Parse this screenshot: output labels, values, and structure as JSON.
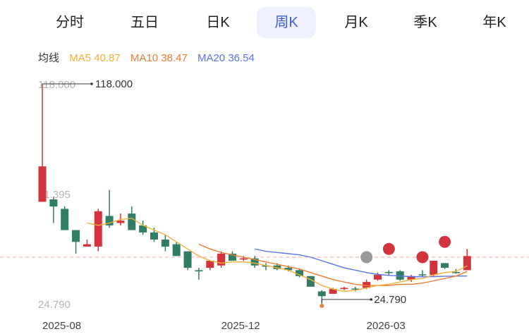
{
  "tabs": [
    {
      "label": "分时",
      "active": false
    },
    {
      "label": "五日",
      "active": false
    },
    {
      "label": "日K",
      "active": false
    },
    {
      "label": "周K",
      "active": true
    },
    {
      "label": "月K",
      "active": false
    },
    {
      "label": "季K",
      "active": false
    },
    {
      "label": "年K",
      "active": false
    }
  ],
  "legend": {
    "title": "均线",
    "ma5": "MA5 40.87",
    "ma10": "MA10 38.47",
    "ma20": "MA20 36.54"
  },
  "colors": {
    "up": "#d3333b",
    "down": "#2f7d64",
    "ma5": "#f2b13b",
    "ma10": "#ef7d34",
    "ma20": "#5b74e8",
    "ref_line": "#f0a89a",
    "marker_gray": "#999999",
    "marker_red": "#d3333b",
    "marker_orange": "#ef7d34"
  },
  "chart_data": {
    "type": "candlestick",
    "y_ticks": [
      "118.000",
      "71.395",
      "24.790"
    ],
    "y_tick_values": [
      118,
      71.395,
      24.79
    ],
    "x_ticks": [
      {
        "label": "2025-08",
        "index": 0
      },
      {
        "label": "2025-12",
        "index": 16
      },
      {
        "label": "2026-03",
        "index": 29
      }
    ],
    "max_annotation": {
      "label": "118.000",
      "value": 118,
      "index": 0
    },
    "min_annotation": {
      "label": "24.790",
      "value": 24.79,
      "index": 25
    },
    "reference_price": 44.5,
    "candles": [
      {
        "o": 68,
        "c": 83,
        "h": 118,
        "l": 68
      },
      {
        "o": 69,
        "c": 66,
        "h": 70,
        "l": 59
      },
      {
        "o": 65,
        "c": 56,
        "h": 66,
        "l": 56
      },
      {
        "o": 56,
        "c": 51,
        "h": 56,
        "l": 46
      },
      {
        "o": 49,
        "c": 50,
        "h": 52,
        "l": 49
      },
      {
        "o": 49,
        "c": 64,
        "h": 65,
        "l": 47
      },
      {
        "o": 62,
        "c": 58,
        "h": 73,
        "l": 57
      },
      {
        "o": 59,
        "c": 60,
        "h": 63,
        "l": 58
      },
      {
        "o": 63,
        "c": 56,
        "h": 66,
        "l": 56
      },
      {
        "o": 58,
        "c": 55,
        "h": 60,
        "l": 54
      },
      {
        "o": 55,
        "c": 52,
        "h": 57,
        "l": 51
      },
      {
        "o": 52,
        "c": 49,
        "h": 54,
        "l": 47
      },
      {
        "o": 50,
        "c": 45,
        "h": 51,
        "l": 45
      },
      {
        "o": 47,
        "c": 40,
        "h": 47,
        "l": 39
      },
      {
        "o": 39,
        "c": 38.5,
        "h": 40,
        "l": 35
      },
      {
        "o": 40,
        "c": 43,
        "h": 43,
        "l": 39
      },
      {
        "o": 41,
        "c": 46,
        "h": 47,
        "l": 40
      },
      {
        "o": 46,
        "c": 43,
        "h": 47,
        "l": 43
      },
      {
        "o": 43.5,
        "c": 44,
        "h": 45,
        "l": 43
      },
      {
        "o": 44,
        "c": 41,
        "h": 45,
        "l": 40
      },
      {
        "o": 41,
        "c": 40.5,
        "h": 42,
        "l": 39
      },
      {
        "o": 41,
        "c": 39.5,
        "h": 42,
        "l": 39
      },
      {
        "o": 40,
        "c": 39,
        "h": 41,
        "l": 38.5
      },
      {
        "o": 39,
        "c": 36.5,
        "h": 39.5,
        "l": 36
      },
      {
        "o": 36.5,
        "c": 32,
        "h": 36.5,
        "l": 32
      },
      {
        "o": 30,
        "c": 28,
        "h": 30.5,
        "l": 24.79
      },
      {
        "o": 29,
        "c": 31,
        "h": 31.5,
        "l": 29
      },
      {
        "o": 31,
        "c": 31.5,
        "h": 32,
        "l": 30.5
      },
      {
        "o": 31,
        "c": 31,
        "h": 32,
        "l": 30
      },
      {
        "o": 31.5,
        "c": 34,
        "h": 35,
        "l": 31
      },
      {
        "o": 35,
        "c": 37,
        "h": 38,
        "l": 34.5
      },
      {
        "o": 38,
        "c": 38,
        "h": 39,
        "l": 37
      },
      {
        "o": 38.5,
        "c": 35,
        "h": 39,
        "l": 34.5
      },
      {
        "o": 35,
        "c": 36.5,
        "h": 37,
        "l": 34
      },
      {
        "o": 37,
        "c": 37,
        "h": 39,
        "l": 36
      },
      {
        "o": 37,
        "c": 43,
        "h": 43,
        "l": 36.5
      },
      {
        "o": 42,
        "c": 40,
        "h": 42,
        "l": 39.5
      },
      {
        "o": 38,
        "c": 38,
        "h": 39.5,
        "l": 37.5
      },
      {
        "o": 39,
        "c": 45,
        "h": 48,
        "l": 39
      }
    ],
    "ma5_points": [
      [
        4,
        59
      ],
      [
        5,
        58
      ],
      [
        6,
        59
      ],
      [
        7,
        60.5
      ],
      [
        8,
        61
      ],
      [
        9,
        58
      ],
      [
        10,
        56
      ],
      [
        11,
        54
      ],
      [
        12,
        51
      ],
      [
        13,
        48
      ],
      [
        14,
        45
      ],
      [
        15,
        43
      ],
      [
        16,
        42
      ],
      [
        17,
        42.5
      ],
      [
        18,
        42.5
      ],
      [
        19,
        42
      ],
      [
        20,
        41
      ],
      [
        21,
        40
      ],
      [
        22,
        39
      ],
      [
        23,
        37
      ],
      [
        24,
        35
      ],
      [
        25,
        32.5
      ],
      [
        26,
        31
      ],
      [
        27,
        30
      ],
      [
        28,
        30.5
      ],
      [
        29,
        31.5
      ],
      [
        30,
        32.5
      ],
      [
        31,
        33
      ],
      [
        32,
        34
      ],
      [
        33,
        35
      ],
      [
        34,
        35.5
      ],
      [
        35,
        37
      ],
      [
        36,
        38
      ],
      [
        37,
        38.5
      ],
      [
        38,
        40.87
      ]
    ],
    "ma10_points": [
      [
        14,
        50
      ],
      [
        15,
        48
      ],
      [
        16,
        46.5
      ],
      [
        17,
        45.5
      ],
      [
        18,
        44.5
      ],
      [
        19,
        43.5
      ],
      [
        20,
        42.5
      ],
      [
        21,
        41.5
      ],
      [
        22,
        40.5
      ],
      [
        23,
        39.5
      ],
      [
        24,
        38
      ],
      [
        25,
        36.5
      ],
      [
        26,
        35
      ],
      [
        27,
        34
      ],
      [
        28,
        33
      ],
      [
        29,
        32.5
      ],
      [
        30,
        32.5
      ],
      [
        31,
        32.5
      ],
      [
        32,
        33
      ],
      [
        33,
        33
      ],
      [
        34,
        33.5
      ],
      [
        35,
        34.5
      ],
      [
        36,
        35.5
      ],
      [
        37,
        36.5
      ],
      [
        38,
        38.47
      ]
    ],
    "ma20_points": [
      [
        19,
        48
      ],
      [
        20,
        47
      ],
      [
        21,
        46.5
      ],
      [
        22,
        46
      ],
      [
        23,
        45.5
      ],
      [
        24,
        44.5
      ],
      [
        25,
        43
      ],
      [
        26,
        41.5
      ],
      [
        27,
        40
      ],
      [
        28,
        39
      ],
      [
        29,
        38
      ],
      [
        30,
        37.2
      ],
      [
        31,
        36.8
      ],
      [
        32,
        36.5
      ],
      [
        33,
        36.3
      ],
      [
        34,
        36.2
      ],
      [
        35,
        36.3
      ],
      [
        36,
        36.4
      ],
      [
        37,
        36.5
      ],
      [
        38,
        36.54
      ]
    ],
    "event_markers": [
      {
        "index": 29,
        "value": 44.5,
        "color": "gray"
      },
      {
        "index": 31,
        "value": 48,
        "color": "red"
      },
      {
        "index": 34,
        "value": 44.5,
        "color": "red"
      },
      {
        "index": 36,
        "value": 51,
        "color": "red"
      }
    ]
  }
}
